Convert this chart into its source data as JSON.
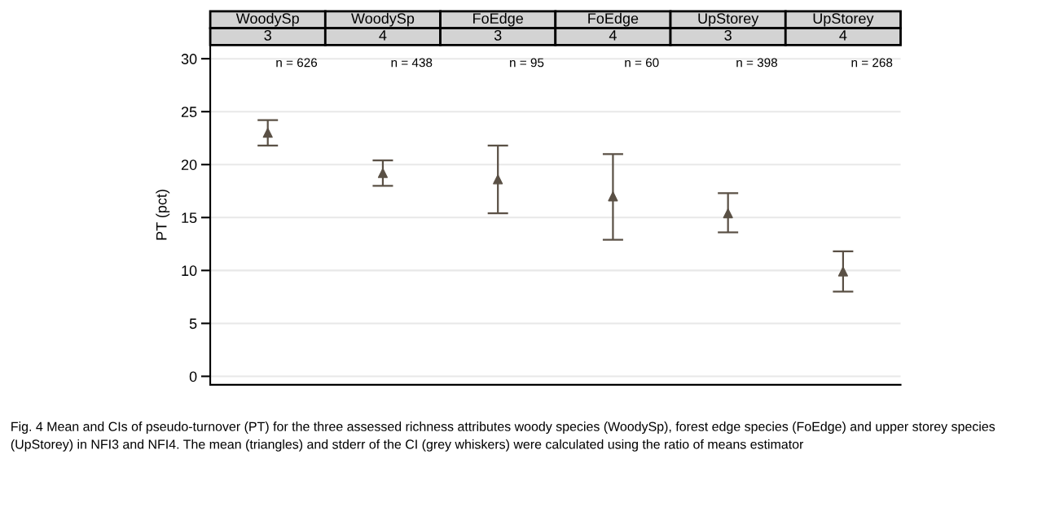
{
  "chart_data": {
    "type": "scatter",
    "ylabel": "PT (pct)",
    "categories": [
      "WoodySp\n3",
      "WoodySp\n4",
      "FoEdge\n3",
      "FoEdge\n4",
      "UpStorey\n3",
      "UpStorey\n4"
    ],
    "series": [
      {
        "color": "#5a5045",
        "values": [
          23.0,
          19.2,
          18.6,
          17.0,
          15.4,
          9.9
        ],
        "errors": [
          [
            21.8,
            24.2
          ],
          [
            18.0,
            20.4
          ],
          [
            15.4,
            21.8
          ],
          [
            12.9,
            21.0
          ],
          [
            13.6,
            17.3
          ],
          [
            8.0,
            11.8
          ]
        ]
      }
    ],
    "ylim": [
      -0.8,
      31.3
    ],
    "yticks": [
      0,
      5,
      10,
      15,
      20,
      25,
      30
    ],
    "grid": "y",
    "marker": "triangle",
    "annotations": [
      "n = 626",
      "n = 438",
      "n = 95",
      "n = 60",
      "n = 398",
      "n = 268",
      "Fig. 4 Mean and CIs of pseudo-turnover (PT) for the three assessed richness attributes woody species (WoodySp), forest edge species (FoEdge) and upper storey species (UpStorey) in NFI3 and NFI4. The mean (triangles) and stderr of the CI (grey whiskers) were calculated using the ratio of means estimator"
    ]
  }
}
